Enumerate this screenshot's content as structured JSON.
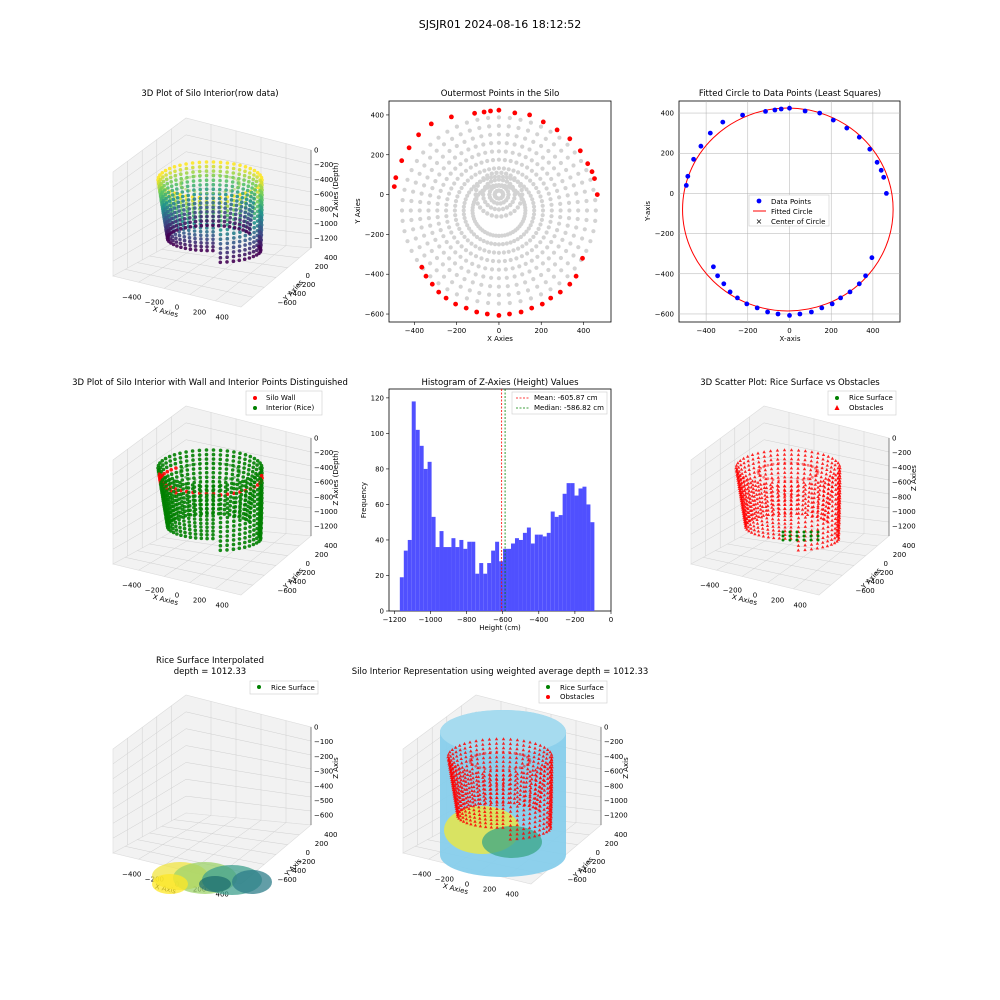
{
  "figure": {
    "suptitle": "SJSJR01 2024-08-16 18:12:52"
  },
  "colors": {
    "wall": "#ff0000",
    "rice": "#008000",
    "outer_pts": "#ff0000",
    "inner_pts": "#d3d3d3",
    "data_pts": "#0000ff",
    "hist": "#5050ff",
    "mean_line": "#ff0000",
    "median_line": "#008000",
    "cylinder": "#87ceeb"
  },
  "chart_data": [
    {
      "id": "p1",
      "type": "scatter3d",
      "title": "3D Plot of Silo Interior(row data)",
      "xlabel": "X Axies",
      "ylabel": "Y Axies",
      "zlabel": "Z Axies (Depth)",
      "xticks": [
        "−400",
        "−200",
        "0",
        "200",
        "400"
      ],
      "yticks": [
        "400",
        "200",
        "0",
        "−200",
        "−400",
        "−600"
      ],
      "zticks": [
        "0",
        "−200",
        "−400",
        "−600",
        "−800",
        "−1000",
        "−1200"
      ],
      "colormap": "viridis",
      "xlim": [
        -500,
        480
      ],
      "ylim": [
        -600,
        420
      ],
      "zlim": [
        -1200,
        0
      ]
    },
    {
      "id": "p2",
      "type": "scatter",
      "title": "Outermost Points in the Silo",
      "xlabel": "X Axies",
      "ylabel": "Y Axies",
      "xticks": [
        -400,
        -200,
        0,
        200,
        400
      ],
      "yticks": [
        400,
        200,
        0,
        -200,
        -400,
        -600
      ],
      "xlim": [
        -520,
        530
      ],
      "ylim": [
        -640,
        470
      ]
    },
    {
      "id": "p3",
      "type": "scatter",
      "title": "Fitted Circle to Data Points (Least Squares)",
      "xlabel": "X-axis",
      "ylabel": "Y-axis",
      "xticks": [
        -400,
        -200,
        0,
        200,
        400
      ],
      "yticks": [
        400,
        200,
        0,
        -200,
        -400,
        -600
      ],
      "xlim": [
        -530,
        530
      ],
      "ylim": [
        -640,
        460
      ],
      "grid": true,
      "legend": "center",
      "legend_entries": [
        "Data Points",
        "Fitted Circle",
        "Center of Circle"
      ],
      "circle": {
        "cx": -8,
        "cy": -80,
        "r": 505
      },
      "points": [
        [
          -495,
          40
        ],
        [
          -488,
          85
        ],
        [
          -460,
          170
        ],
        [
          -425,
          235
        ],
        [
          -380,
          300
        ],
        [
          -320,
          355
        ],
        [
          -225,
          390
        ],
        [
          -115,
          408
        ],
        [
          -70,
          415
        ],
        [
          -40,
          420
        ],
        [
          0,
          424
        ],
        [
          75,
          410
        ],
        [
          145,
          400
        ],
        [
          210,
          365
        ],
        [
          275,
          325
        ],
        [
          335,
          280
        ],
        [
          385,
          220
        ],
        [
          420,
          155
        ],
        [
          440,
          115
        ],
        [
          452,
          80
        ],
        [
          465,
          0
        ],
        [
          -365,
          -365
        ],
        [
          -345,
          -410
        ],
        [
          -315,
          -450
        ],
        [
          -285,
          -490
        ],
        [
          -250,
          -520
        ],
        [
          -205,
          -550
        ],
        [
          -155,
          -570
        ],
        [
          -105,
          -590
        ],
        [
          -55,
          -600
        ],
        [
          0,
          -607
        ],
        [
          50,
          -600
        ],
        [
          105,
          -590
        ],
        [
          155,
          -570
        ],
        [
          205,
          -550
        ],
        [
          245,
          -520
        ],
        [
          290,
          -490
        ],
        [
          335,
          -450
        ],
        [
          365,
          -410
        ],
        [
          395,
          -320
        ]
      ]
    },
    {
      "id": "p4",
      "type": "scatter3d",
      "title": "3D Plot of Silo Interior with Wall and Interior Points Distinguished",
      "xlabel": "X Axies",
      "ylabel": "Y Axies",
      "zlabel": "Z Axies (Depth)",
      "xticks": [
        "−400",
        "−200",
        "0",
        "200",
        "400"
      ],
      "yticks": [
        "400",
        "200",
        "0",
        "−200",
        "−400",
        "−600"
      ],
      "zticks": [
        "0",
        "−200",
        "−400",
        "−600",
        "−800",
        "−1000",
        "−1200"
      ],
      "legend": "top-right",
      "legend_entries": [
        "Silo Wall",
        "Interior (Rice)"
      ]
    },
    {
      "id": "p5",
      "type": "bar",
      "title": "Histogram of Z-Axies (Height) Values",
      "xlabel": "Height (cm)",
      "ylabel": "Frequency",
      "xlim": [
        -1230,
        0
      ],
      "ylim": [
        0,
        125
      ],
      "xticks": [
        -1200,
        -1000,
        -800,
        -600,
        -400,
        -200,
        0
      ],
      "yticks": [
        0,
        20,
        40,
        60,
        80,
        100,
        120
      ],
      "bin_start": -1170,
      "bin_width": 22,
      "values": [
        19,
        34,
        40,
        118,
        102,
        93,
        80,
        84,
        53,
        36,
        45,
        36,
        36,
        41,
        36,
        40,
        35,
        39,
        39,
        21,
        27,
        21,
        27,
        34,
        39,
        28,
        35,
        35,
        38,
        41,
        40,
        44,
        47,
        38,
        43,
        43,
        42,
        44,
        56,
        53,
        54,
        66,
        72,
        72,
        65,
        69,
        70,
        60,
        50
      ],
      "mean": -605.87,
      "median": -586.82,
      "legend": "top-right",
      "legend_entries": [
        "Mean: -605.87 cm",
        "Median: -586.82 cm"
      ]
    },
    {
      "id": "p6",
      "type": "scatter3d",
      "title": "3D Scatter Plot: Rice Surface vs Obstacles",
      "xlabel": "X Axies",
      "ylabel": "Y Axies",
      "zlabel": "Z Axies",
      "xticks": [
        "−400",
        "−200",
        "0",
        "200",
        "400"
      ],
      "yticks": [
        "400",
        "200",
        "0",
        "−200",
        "−400",
        "−600"
      ],
      "zticks": [
        "0",
        "−200",
        "−400",
        "−600",
        "−800",
        "−1000",
        "−1200"
      ],
      "legend": "top-right",
      "legend_entries": [
        "Rice Surface",
        "Obstacles"
      ]
    },
    {
      "id": "p7",
      "type": "surface3d",
      "title": "Rice Surface Interpolated",
      "title2": "depth = 1012.33",
      "xlabel": "X Axis",
      "ylabel": "Y Axis",
      "zlabel": "Z Axis",
      "xticks": [
        "−400",
        "−200",
        "0",
        "200",
        "400"
      ],
      "yticks": [
        "400",
        "200",
        "0",
        "−200",
        "−400",
        "−600"
      ],
      "zticks": [
        "0",
        "−100",
        "−200",
        "−300",
        "−400",
        "−500",
        "−600"
      ],
      "legend": "top-right",
      "legend_entries": [
        "Rice Surface"
      ]
    },
    {
      "id": "p8",
      "type": "scatter3d",
      "title": "Silo Interior Representation using weighted average depth = 1012.33",
      "xlabel": "X Axies",
      "ylabel": "Y Axies",
      "zlabel": "Z Axis",
      "xticks": [
        "−400",
        "−200",
        "0",
        "200",
        "400"
      ],
      "yticks": [
        "400",
        "200",
        "0",
        "−200",
        "−400",
        "−600"
      ],
      "zticks": [
        "0",
        "−200",
        "−400",
        "−600",
        "−800",
        "−1000",
        "−1200"
      ],
      "legend": "top-left",
      "legend_entries": [
        "Rice Surface",
        "Obstacles"
      ]
    }
  ]
}
